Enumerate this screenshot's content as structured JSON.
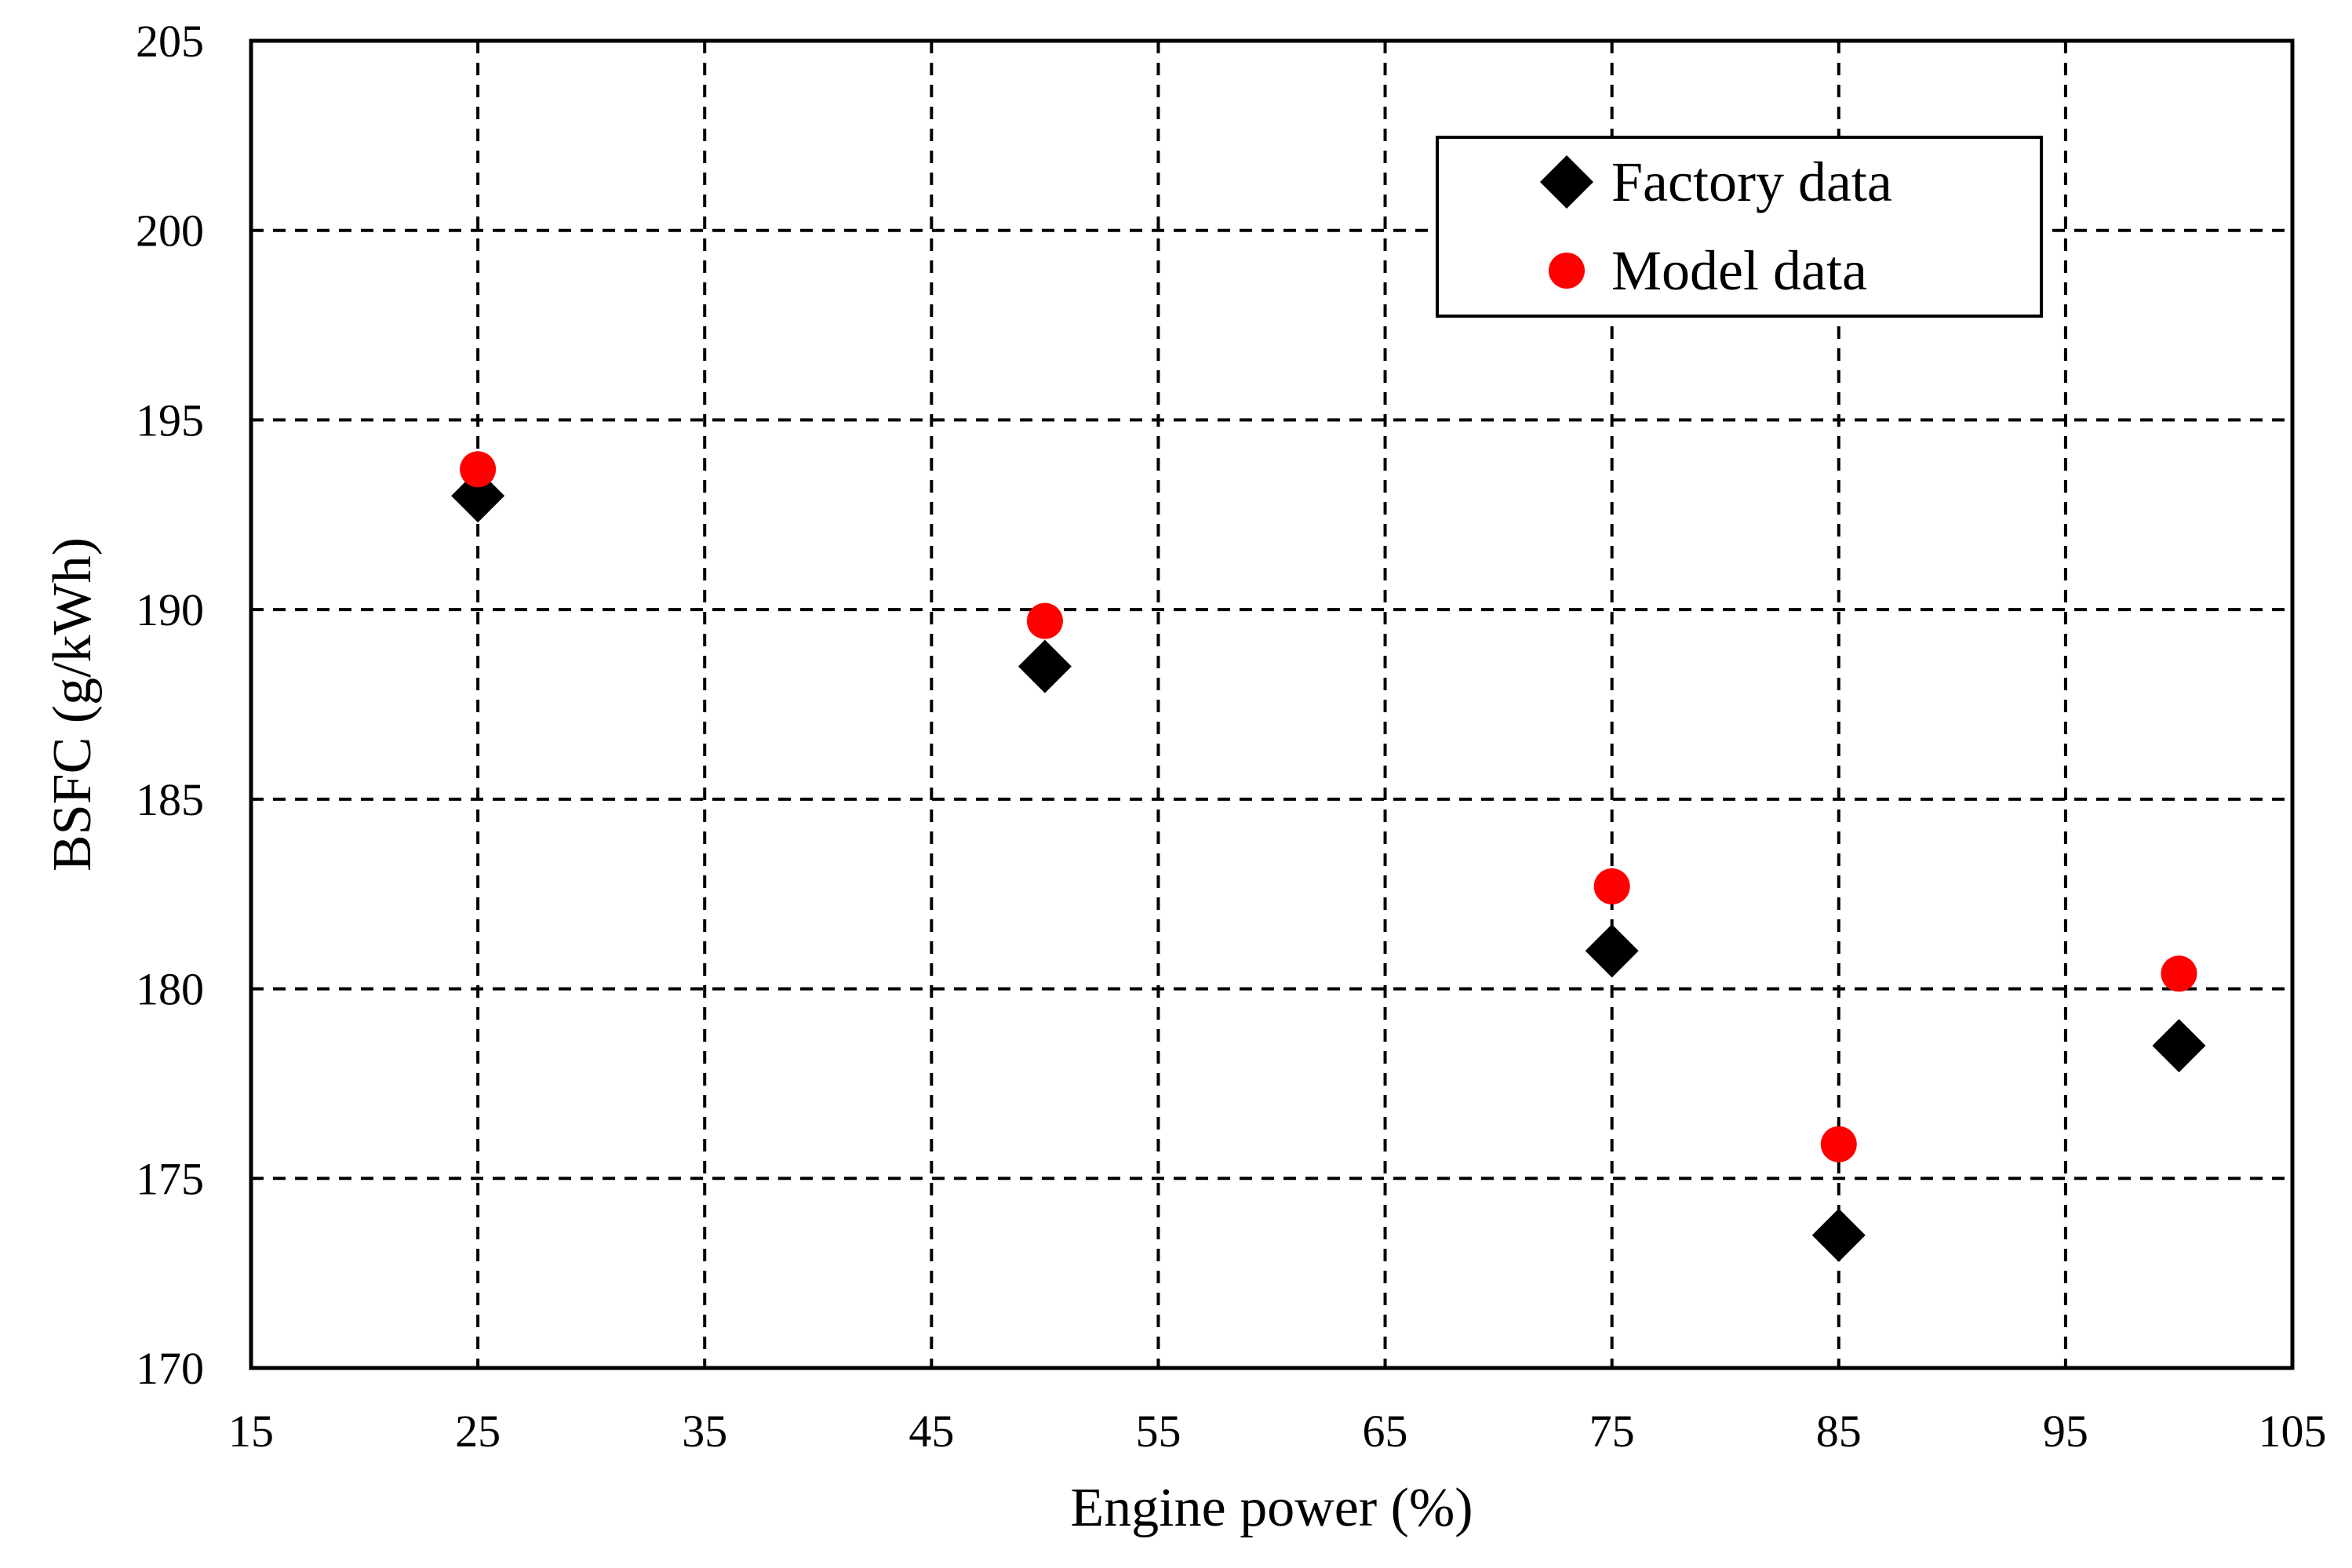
{
  "chart_data": {
    "type": "scatter",
    "title": "",
    "xlabel": "Engine power (%)",
    "ylabel": "BSFC (g/kWh)",
    "xlim": [
      15,
      105
    ],
    "ylim": [
      170,
      205
    ],
    "xticks": [
      15,
      25,
      35,
      45,
      55,
      65,
      75,
      85,
      95,
      105
    ],
    "yticks": [
      170,
      175,
      180,
      185,
      190,
      195,
      200,
      205
    ],
    "grid": true,
    "legend_position": "top-right",
    "series": [
      {
        "name": "Factory data",
        "marker": "diamond",
        "color": "#000000",
        "points": [
          {
            "x": 25,
            "y": 193.0
          },
          {
            "x": 50,
            "y": 188.5
          },
          {
            "x": 75,
            "y": 181.0
          },
          {
            "x": 85,
            "y": 173.5
          },
          {
            "x": 100,
            "y": 178.5
          }
        ]
      },
      {
        "name": "Model data",
        "marker": "circle",
        "color": "#ff0000",
        "points": [
          {
            "x": 25,
            "y": 193.7
          },
          {
            "x": 50,
            "y": 189.7
          },
          {
            "x": 75,
            "y": 182.7
          },
          {
            "x": 85,
            "y": 175.9
          },
          {
            "x": 100,
            "y": 180.4
          }
        ]
      }
    ]
  }
}
